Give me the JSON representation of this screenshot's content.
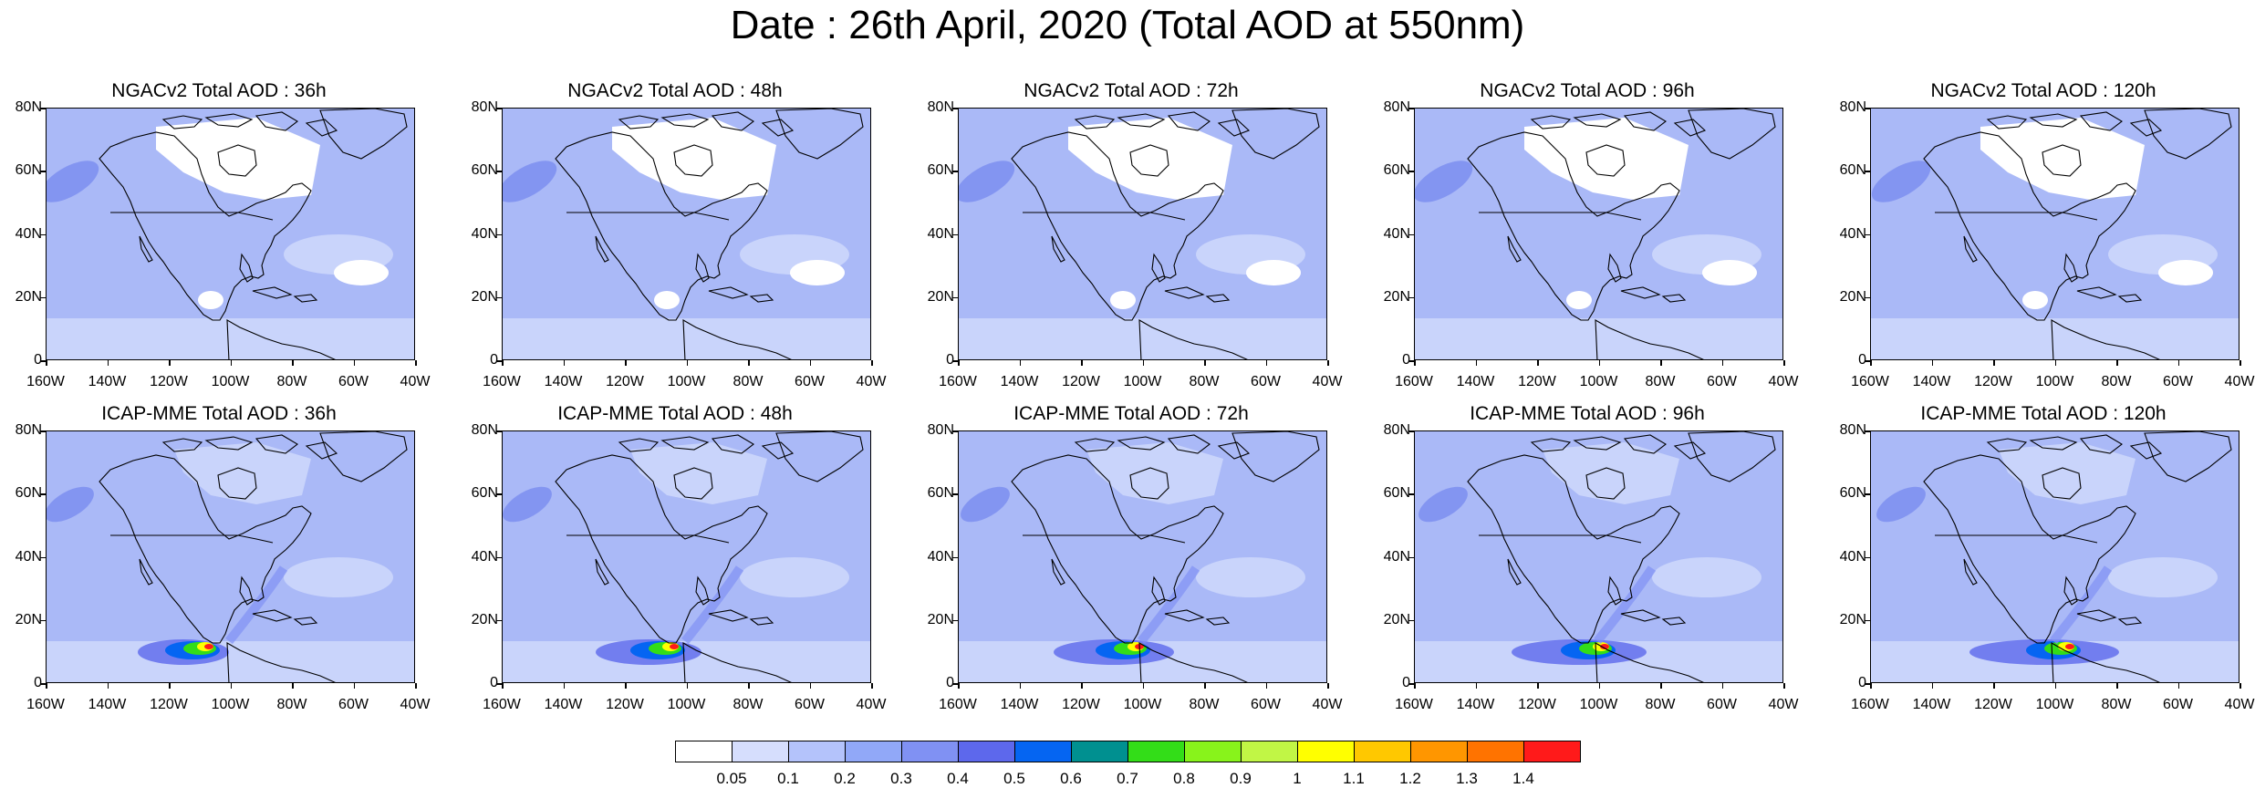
{
  "title": "Date : 26th April, 2020 (Total AOD at 550nm)",
  "colors": {
    "background": "#ffffff",
    "ocean_low": "#c9d4fb",
    "ocean_mid": "#aab9f7",
    "plume": "#7d8ef0",
    "coast": "#000000"
  },
  "axes": {
    "lat_labels": [
      "80N",
      "60N",
      "40N",
      "20N",
      "0"
    ],
    "lon_labels": [
      "160W",
      "140W",
      "120W",
      "100W",
      "80W",
      "60W",
      "40W"
    ]
  },
  "panels": [
    {
      "id": "ngac-36",
      "title": "NGACv2 Total AOD : 36h",
      "model": "NGACv2",
      "lead": "36h"
    },
    {
      "id": "ngac-48",
      "title": "NGACv2 Total AOD : 48h",
      "model": "NGACv2",
      "lead": "48h"
    },
    {
      "id": "ngac-72",
      "title": "NGACv2 Total AOD : 72h",
      "model": "NGACv2",
      "lead": "72h"
    },
    {
      "id": "ngac-96",
      "title": "NGACv2 Total AOD : 96h",
      "model": "NGACv2",
      "lead": "96h"
    },
    {
      "id": "ngac-120",
      "title": "NGACv2 Total AOD : 120h",
      "model": "NGACv2",
      "lead": "120h"
    },
    {
      "id": "icap-36",
      "title": "ICAP-MME Total AOD : 36h",
      "model": "ICAP-MME",
      "lead": "36h"
    },
    {
      "id": "icap-48",
      "title": "ICAP-MME Total AOD : 48h",
      "model": "ICAP-MME",
      "lead": "48h"
    },
    {
      "id": "icap-72",
      "title": "ICAP-MME Total AOD : 72h",
      "model": "ICAP-MME",
      "lead": "72h"
    },
    {
      "id": "icap-96",
      "title": "ICAP-MME Total AOD : 96h",
      "model": "ICAP-MME",
      "lead": "96h"
    },
    {
      "id": "icap-120",
      "title": "ICAP-MME Total AOD : 120h",
      "model": "ICAP-MME",
      "lead": "120h"
    }
  ],
  "colorbar": {
    "labels": [
      "0.05",
      "0.1",
      "0.2",
      "0.3",
      "0.4",
      "0.5",
      "0.6",
      "0.7",
      "0.8",
      "0.9",
      "1",
      "1.1",
      "1.2",
      "1.3",
      "1.4"
    ],
    "colors": [
      "#ffffff",
      "#d6defd",
      "#b4c3fb",
      "#91a8f8",
      "#8091f3",
      "#5d68ec",
      "#0565f2",
      "#009090",
      "#33dd18",
      "#88f31b",
      "#c1f645",
      "#ffff00",
      "#ffc800",
      "#ff9600",
      "#ff7300",
      "#ff1a1a"
    ]
  }
}
